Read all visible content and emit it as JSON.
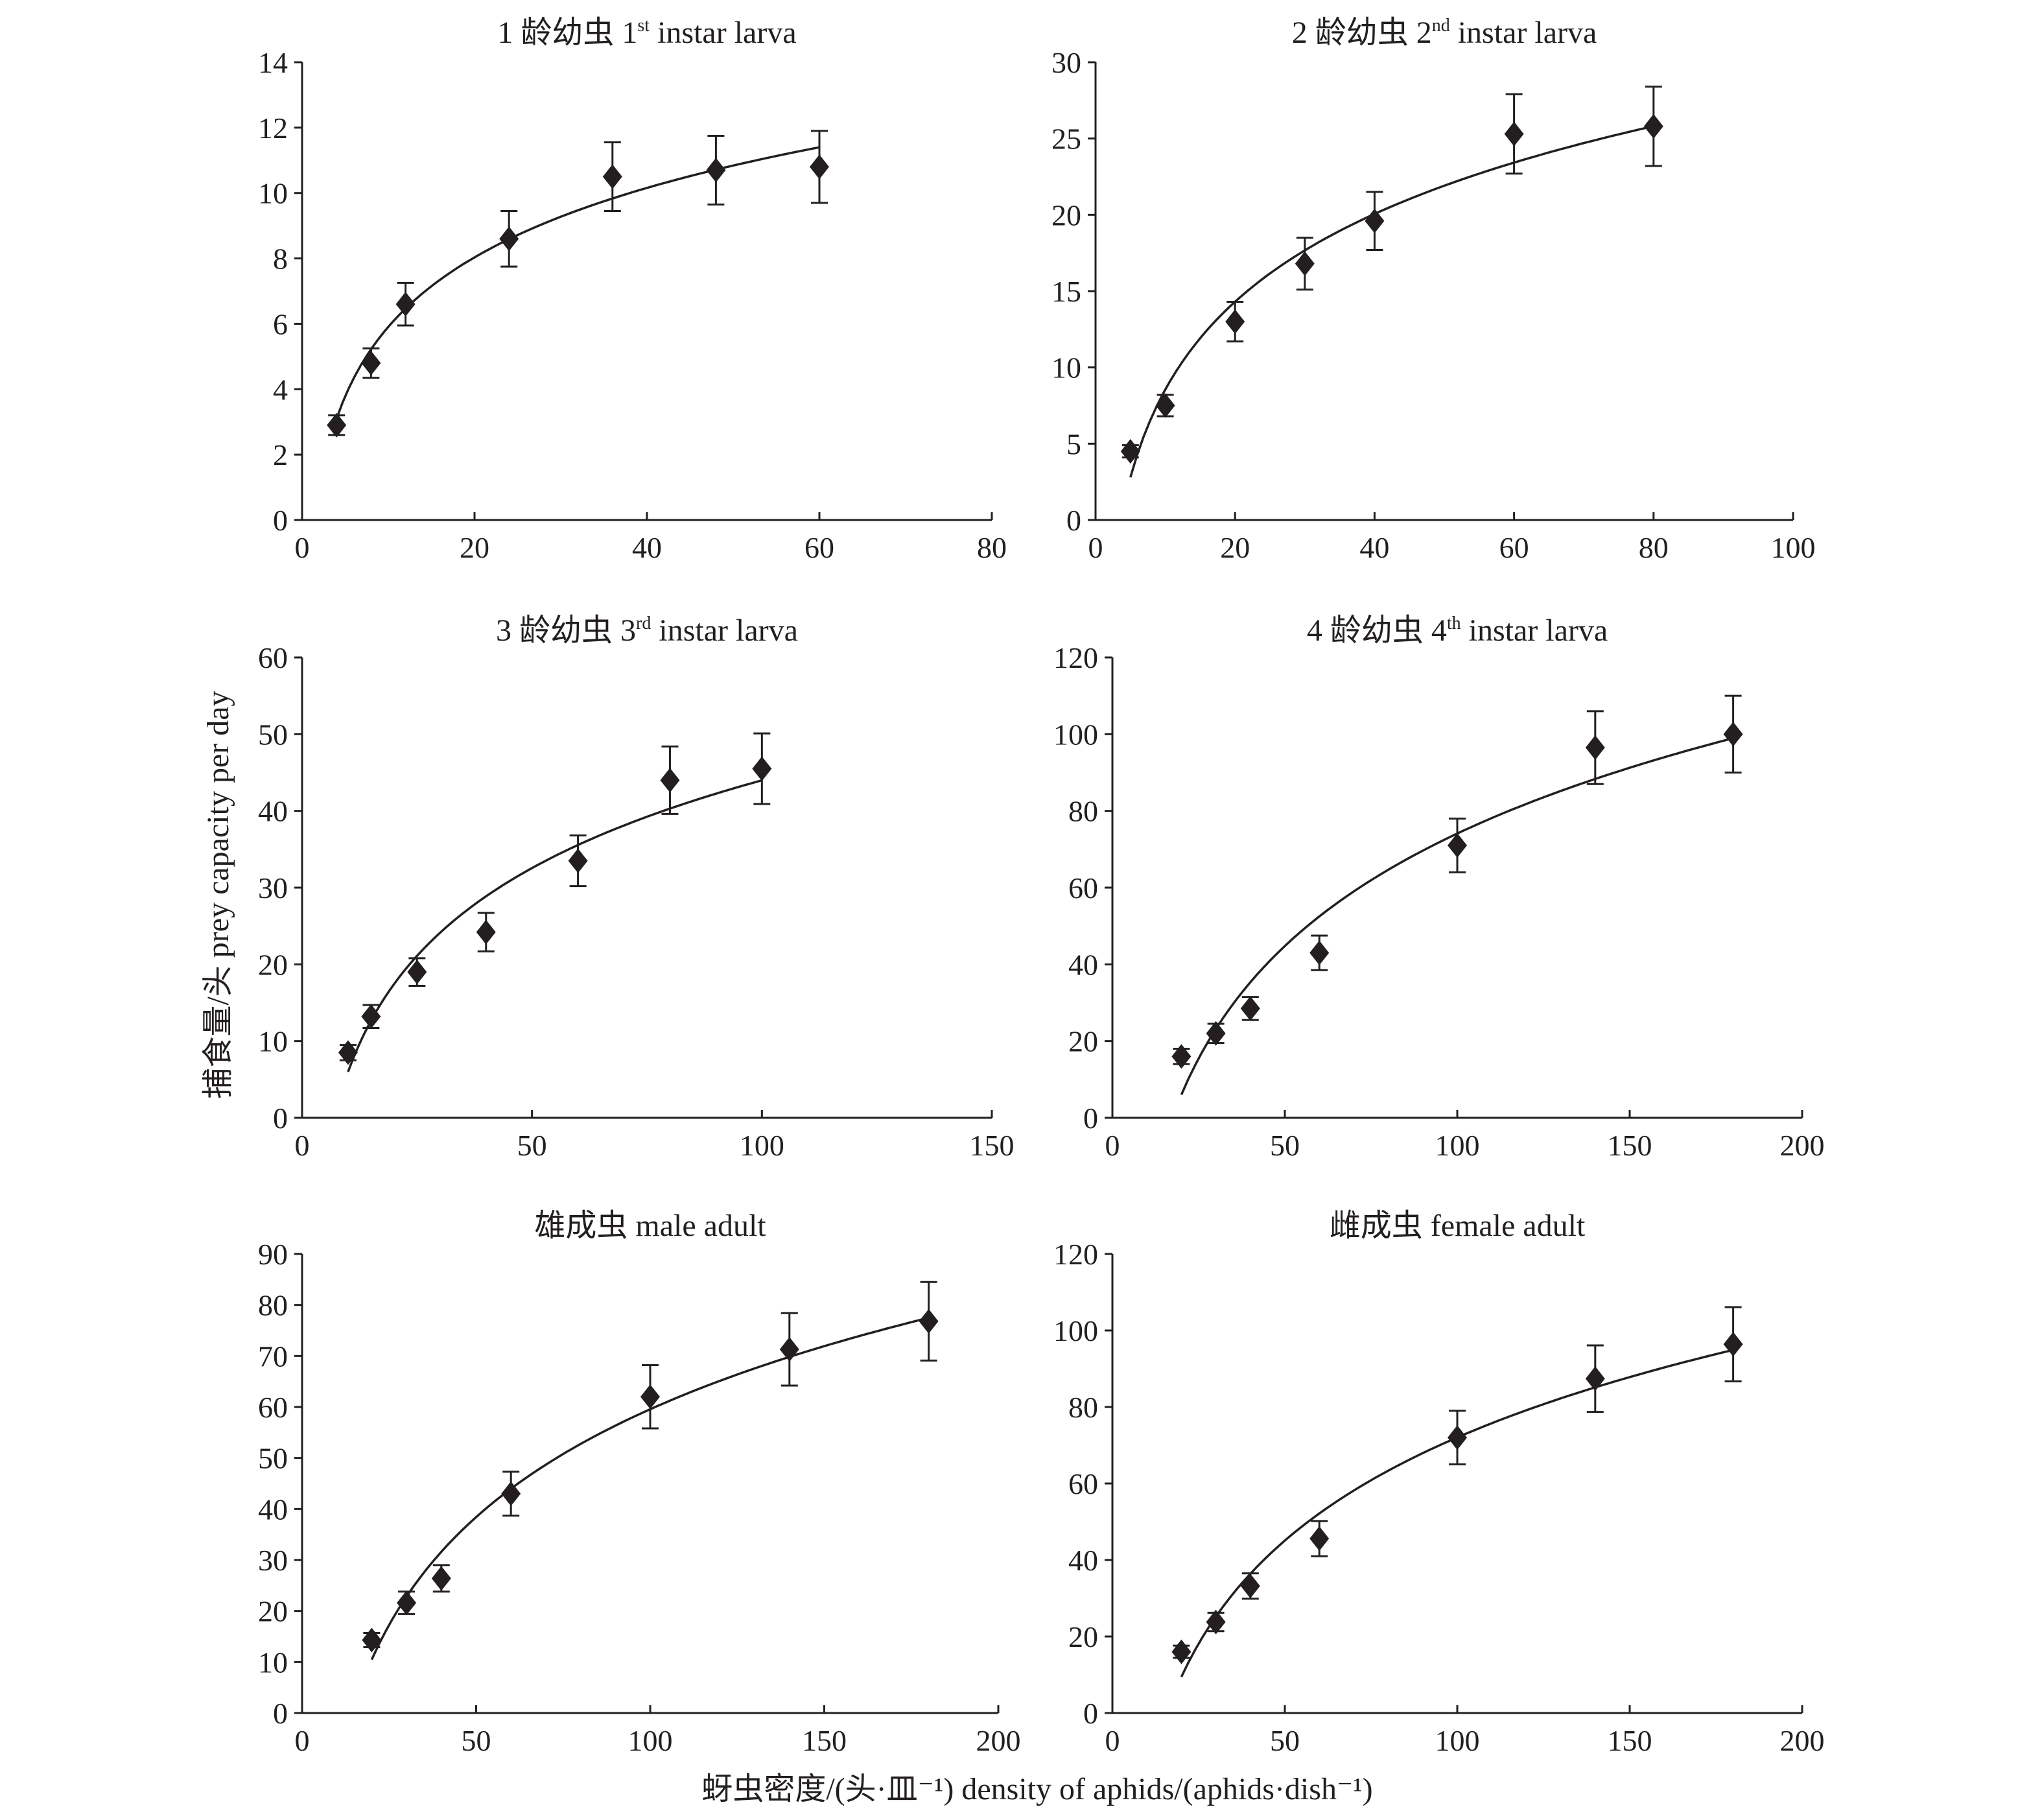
{
  "chart_data": {
    "type": "scatter",
    "y_label": "捕食量/头 prey capacity per day",
    "x_label": "蚜虫密度/(头·皿⁻¹) density of aphids/(aphids·dish⁻¹)",
    "marker": "diamond",
    "colors": {
      "ink": "#231f20",
      "background": "#ffffff"
    },
    "panels": [
      {
        "title": {
          "num": "1",
          "zh": "龄幼虫",
          "ord": "1",
          "sup": "st",
          "en": "instar larva"
        },
        "xlim": [
          0,
          80
        ],
        "xticks": [
          0,
          20,
          40,
          60,
          80
        ],
        "ylim": [
          0,
          14
        ],
        "yticks": [
          0,
          2,
          4,
          6,
          8,
          10,
          12,
          14
        ],
        "x": [
          4,
          8,
          12,
          24,
          36,
          48,
          60
        ],
        "y": [
          2.9,
          4.8,
          6.6,
          8.6,
          10.5,
          10.7,
          10.8
        ],
        "err": [
          0.3,
          0.45,
          0.65,
          0.85,
          1.05,
          1.05,
          1.1
        ],
        "fit": {
          "type": "log",
          "a": -1.15,
          "b": 3.065,
          "x_range": [
            4,
            60
          ]
        }
      },
      {
        "title": {
          "num": "2",
          "zh": "龄幼虫",
          "ord": "2",
          "sup": "nd",
          "en": "instar larva"
        },
        "xlim": [
          0,
          100
        ],
        "xticks": [
          0,
          20,
          40,
          60,
          80,
          100
        ],
        "ylim": [
          0,
          30
        ],
        "yticks": [
          0,
          5,
          10,
          15,
          20,
          25,
          30
        ],
        "x": [
          5,
          10,
          20,
          30,
          40,
          60,
          80
        ],
        "y": [
          4.5,
          7.5,
          13.0,
          16.8,
          19.6,
          25.3,
          25.8
        ],
        "err": [
          0.4,
          0.7,
          1.3,
          1.7,
          1.9,
          2.6,
          2.6
        ],
        "fit": {
          "type": "log",
          "a": -10.56,
          "b": 8.3,
          "x_range": [
            5,
            80
          ]
        }
      },
      {
        "title": {
          "num": "3",
          "zh": "龄幼虫",
          "ord": "3",
          "sup": "rd",
          "en": "instar larva"
        },
        "xlim": [
          0,
          150
        ],
        "xticks": [
          0,
          50,
          100,
          150
        ],
        "ylim": [
          0,
          60
        ],
        "yticks": [
          0,
          10,
          20,
          30,
          40,
          50,
          60
        ],
        "x": [
          10,
          15,
          25,
          40,
          60,
          80,
          100
        ],
        "y": [
          8.5,
          13.2,
          19.0,
          24.2,
          33.5,
          44.0,
          45.5
        ],
        "err": [
          1.0,
          1.5,
          1.8,
          2.5,
          3.3,
          4.4,
          4.6
        ],
        "fit": {
          "type": "log",
          "a": -32.0,
          "b": 16.5,
          "x_range": [
            10,
            100
          ]
        }
      },
      {
        "title": {
          "num": "4",
          "zh": "龄幼虫",
          "ord": "4",
          "sup": "th",
          "en": "instar larva"
        },
        "xlim": [
          0,
          200
        ],
        "xticks": [
          0,
          50,
          100,
          150,
          200
        ],
        "ylim": [
          0,
          120
        ],
        "yticks": [
          0,
          20,
          40,
          60,
          80,
          100,
          120
        ],
        "x": [
          20,
          30,
          40,
          60,
          100,
          140,
          180
        ],
        "y": [
          16,
          22,
          28.5,
          43,
          71,
          96.5,
          100
        ],
        "err": [
          2,
          2.5,
          3,
          4.5,
          7,
          9.5,
          10
        ],
        "fit": {
          "type": "log",
          "a": -120.7,
          "b": 42.3,
          "x_range": [
            20,
            180
          ]
        }
      },
      {
        "title": {
          "num": "",
          "zh": "雄成虫",
          "ord": "",
          "sup": "",
          "en": "male adult"
        },
        "xlim": [
          0,
          200
        ],
        "xticks": [
          0,
          50,
          100,
          150,
          200
        ],
        "ylim": [
          0,
          90
        ],
        "yticks": [
          0,
          10,
          20,
          30,
          40,
          50,
          60,
          70,
          80,
          90
        ],
        "x": [
          20,
          30,
          40,
          60,
          100,
          140,
          180
        ],
        "y": [
          14.3,
          21.6,
          26.4,
          43,
          62,
          71.3,
          76.8
        ],
        "err": [
          1.4,
          2.2,
          2.6,
          4.3,
          6.2,
          7.1,
          7.7
        ],
        "fit": {
          "type": "log",
          "a": -80.9,
          "b": 30.5,
          "x_range": [
            20,
            180
          ]
        }
      },
      {
        "title": {
          "num": "",
          "zh": "雌成虫",
          "ord": "",
          "sup": "",
          "en": "female  adult"
        },
        "xlim": [
          0,
          200
        ],
        "xticks": [
          0,
          50,
          100,
          150,
          200
        ],
        "ylim": [
          0,
          120
        ],
        "yticks": [
          0,
          20,
          40,
          60,
          80,
          100,
          120
        ],
        "x": [
          20,
          30,
          40,
          60,
          100,
          140,
          180
        ],
        "y": [
          16,
          23.8,
          33.2,
          45.6,
          72,
          87.4,
          96.4
        ],
        "err": [
          1.6,
          2.4,
          3.3,
          4.6,
          7,
          8.7,
          9.7
        ],
        "fit": {
          "type": "log",
          "a": -107.1,
          "b": 38.9,
          "x_range": [
            20,
            180
          ]
        }
      }
    ]
  }
}
